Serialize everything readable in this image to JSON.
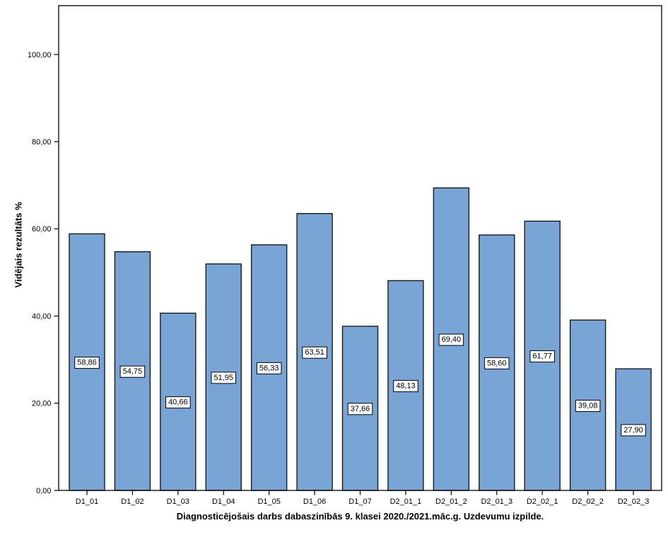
{
  "figure": {
    "background": "#ffffff"
  },
  "chart_data": {
    "type": "bar",
    "title": "",
    "xlabel": "Diagnosticējošais darbs dabaszinībās 9. klasei 2020./2021.māc.g. Uzdevumu izpilde.",
    "ylabel": "Vidējais rezultāts %",
    "categories": [
      "D1_01",
      "D1_02",
      "D1_03",
      "D1_04",
      "D1_05",
      "D1_06",
      "D1_07",
      "D2_01_1",
      "D2_01_2",
      "D2_01_3",
      "D2_02_1",
      "D2_02_2",
      "D2_02_3"
    ],
    "values": [
      58.86,
      54.75,
      40.66,
      51.95,
      56.33,
      63.51,
      37.66,
      48.13,
      69.4,
      58.6,
      61.77,
      39.08,
      27.9
    ],
    "value_labels": [
      "58,86",
      "54,75",
      "40,66",
      "51,95",
      "56,33",
      "63,51",
      "37,66",
      "48,13",
      "69,40",
      "58,60",
      "61,77",
      "39,08",
      "27,90"
    ],
    "value_label_position": "middle-of-bar",
    "yticks": [
      0,
      20,
      40,
      60,
      80,
      100
    ],
    "ytick_labels": [
      "0,00",
      "20,00",
      "40,00",
      "60,00",
      "80,00",
      "100,00"
    ],
    "ylim": [
      0,
      111.2
    ],
    "grid": false,
    "legend": false,
    "colors": {
      "bar_fill": "#79A5D6",
      "bar_stroke": "#1a1a1a",
      "axis": "#000000",
      "text": "#000000",
      "value_label_box_fill": "#ffffff",
      "value_label_box_stroke": "#000000",
      "background": "#ffffff"
    }
  }
}
